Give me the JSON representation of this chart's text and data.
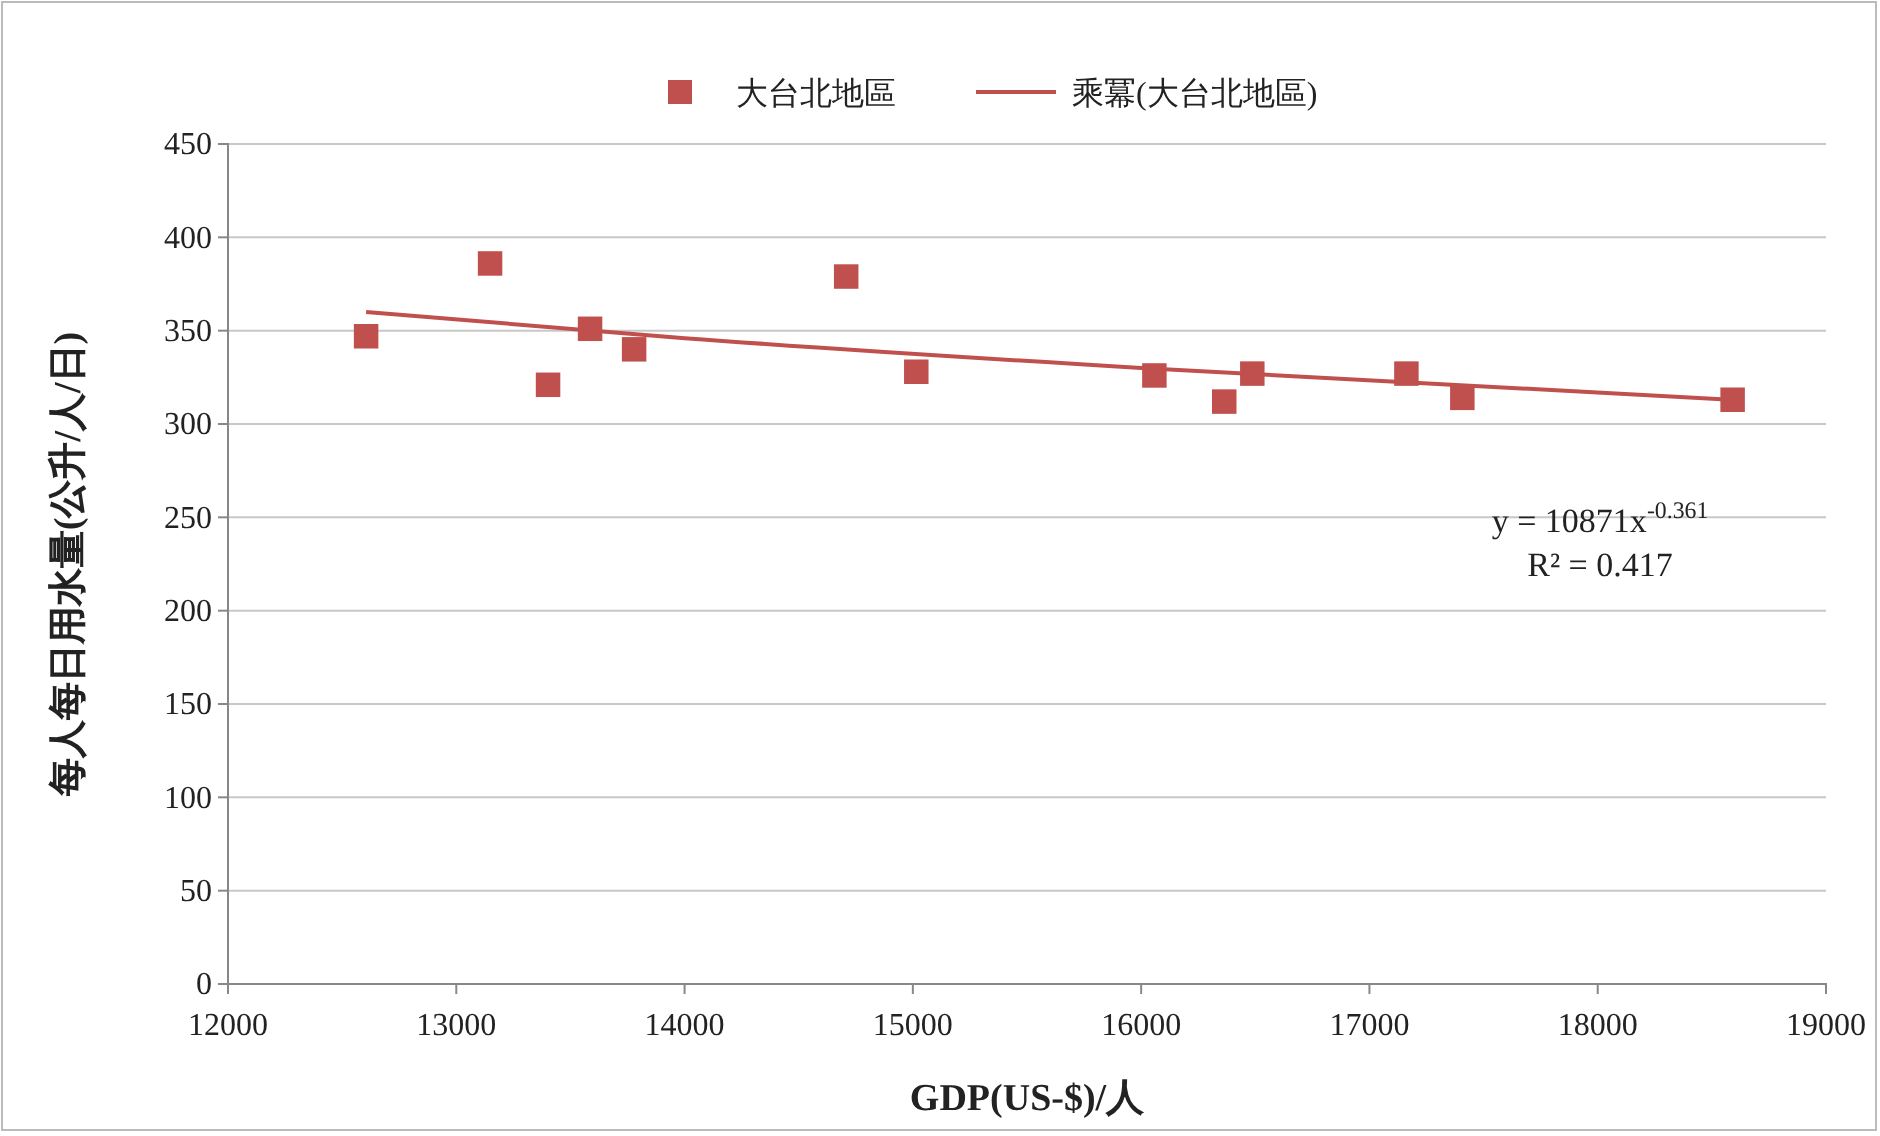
{
  "chart_data": {
    "type": "scatter",
    "xlabel": "GDP(US-$)/人",
    "ylabel": "每人每日用水量(公升/人/日)",
    "xlim": [
      12000,
      19000
    ],
    "xticks": [
      12000,
      13000,
      14000,
      15000,
      16000,
      17000,
      18000,
      19000
    ],
    "ylim": [
      0,
      450
    ],
    "yticks": [
      0,
      50,
      100,
      150,
      200,
      250,
      300,
      350,
      400,
      450
    ],
    "grid": "y",
    "legend": "top",
    "series": [
      {
        "name": "大台北地區",
        "marker": "square",
        "color": "#c0504d",
        "x": [
          12605,
          13148,
          13402,
          13586,
          13779,
          14708,
          15015,
          16058,
          16364,
          16487,
          17162,
          17407,
          18591
        ],
        "values": [
          347,
          386,
          321,
          351,
          340,
          379,
          328,
          326,
          312,
          327,
          327,
          314,
          313
        ]
      },
      {
        "name": "乘冪(大台北地區)",
        "type": "line",
        "color": "#c0504d",
        "x": [
          12605,
          14000,
          16000,
          18591
        ],
        "values": [
          360,
          346,
          330,
          313
        ]
      }
    ],
    "annotations": [
      "y = 10871x$^{-0.361}$",
      "R² = 0.417"
    ]
  }
}
